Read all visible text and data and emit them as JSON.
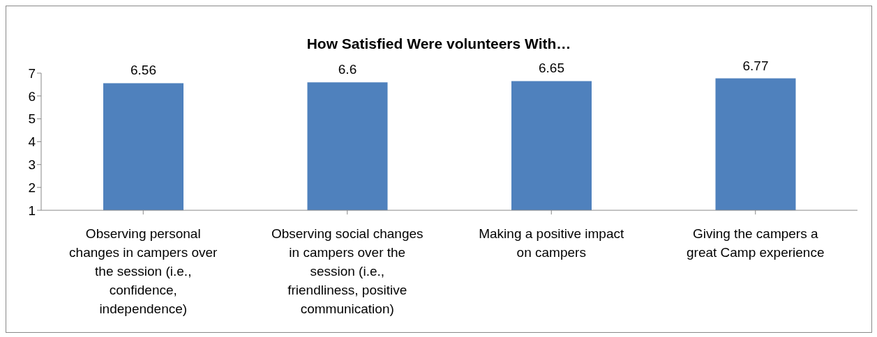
{
  "chart_data": {
    "type": "bar",
    "title": "How Satisfied Were volunteers With…",
    "categories": [
      "Observing personal changes in campers over the session (i.e., confidence, independence)",
      "Observing social changes in campers over the session (i.e., friendliness, positive communication)",
      "Making a positive impact on campers",
      "Giving the campers a great Camp experience"
    ],
    "values": [
      6.56,
      6.6,
      6.65,
      6.77
    ],
    "color": "#4f81bd",
    "ylim": [
      1,
      7
    ],
    "yticks": [
      1,
      2,
      3,
      4,
      5,
      6,
      7
    ],
    "grid": false,
    "data_labels": true
  }
}
